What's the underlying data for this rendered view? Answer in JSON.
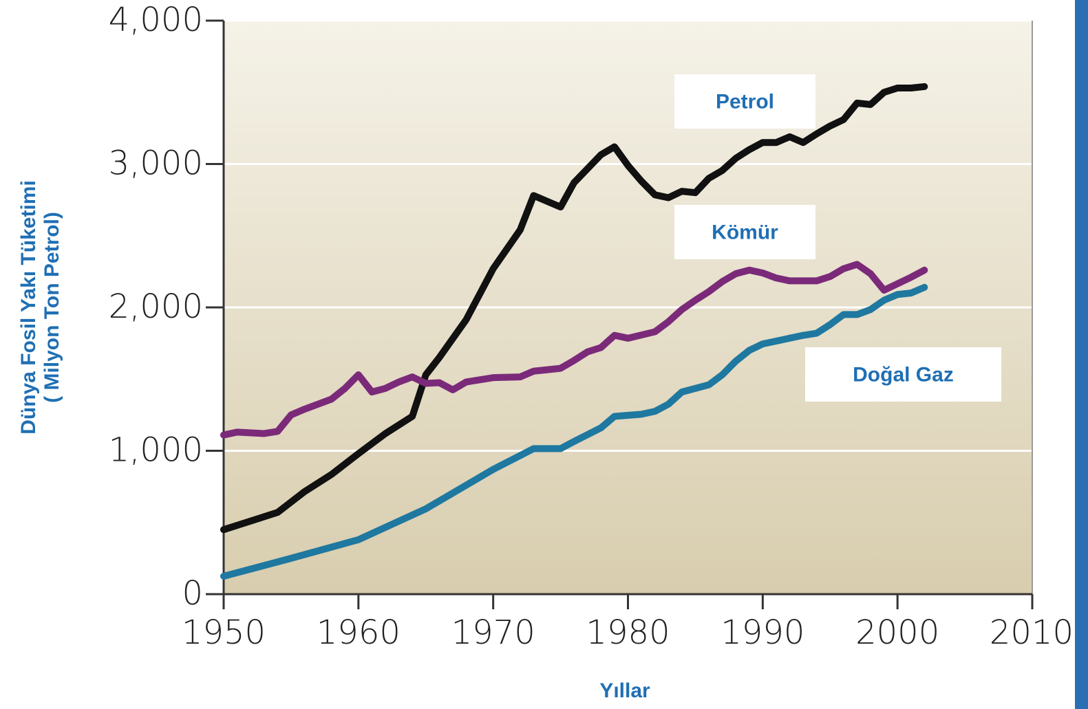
{
  "chart_data": {
    "type": "line",
    "y_label": [
      "Dünya Fosil Yakı Tüketimi",
      "( Milyon Ton Petrol)"
    ],
    "x_label": "Yıllar",
    "xlim": [
      1950,
      2010
    ],
    "xticks": [
      1950,
      1960,
      1970,
      1980,
      1990,
      2000,
      2010
    ],
    "ylim": [
      0,
      4000
    ],
    "yticks": [
      0,
      {
        "value": 1000,
        "label": "1,000"
      },
      {
        "value": 2000,
        "label": "2,000"
      },
      {
        "value": 3000,
        "label": "3,000"
      },
      {
        "value": 4000,
        "label": "4,000"
      }
    ],
    "grid": true,
    "series": [
      {
        "name": "Petrol",
        "color": "#111111",
        "x": [
          1950,
          1954,
          1956,
          1958,
          1960,
          1962,
          1964,
          1965,
          1966,
          1968,
          1970,
          1972,
          1973,
          1975,
          1976,
          1978,
          1979,
          1980,
          1981,
          1982,
          1983,
          1984,
          1985,
          1986,
          1987,
          1988,
          1989,
          1990,
          1991,
          1992,
          1993,
          1994,
          1995,
          1996,
          1997,
          1998,
          1999,
          2000,
          2001,
          2002
        ],
        "values": [
          450,
          570,
          715,
          835,
          980,
          1120,
          1240,
          1530,
          1650,
          1915,
          2270,
          2540,
          2780,
          2700,
          2870,
          3065,
          3120,
          2990,
          2880,
          2785,
          2765,
          2810,
          2800,
          2900,
          2955,
          3040,
          3100,
          3150,
          3150,
          3190,
          3150,
          3210,
          3265,
          3310,
          3425,
          3415,
          3500,
          3530,
          3530,
          3540
        ]
      },
      {
        "name": "Kömür",
        "color": "#7b2a7a",
        "x": [
          1950,
          1951,
          1953,
          1954,
          1955,
          1956,
          1958,
          1959,
          1960,
          1961,
          1962,
          1963,
          1964,
          1965,
          1966,
          1967,
          1968,
          1970,
          1972,
          1973,
          1975,
          1976,
          1977,
          1978,
          1979,
          1980,
          1982,
          1983,
          1984,
          1985,
          1986,
          1987,
          1988,
          1989,
          1990,
          1991,
          1992,
          1994,
          1995,
          1996,
          1997,
          1998,
          1999,
          2000,
          2001,
          2002
        ],
        "values": [
          1110,
          1130,
          1120,
          1135,
          1250,
          1290,
          1360,
          1435,
          1530,
          1410,
          1435,
          1480,
          1515,
          1470,
          1475,
          1425,
          1480,
          1510,
          1515,
          1555,
          1575,
          1630,
          1690,
          1720,
          1805,
          1785,
          1830,
          1900,
          1985,
          2050,
          2110,
          2180,
          2235,
          2260,
          2240,
          2205,
          2185,
          2185,
          2215,
          2270,
          2300,
          2235,
          2120,
          2165,
          2210,
          2260
        ]
      },
      {
        "name": "Doğal Gaz",
        "color": "#1f78a0",
        "x": [
          1950,
          1955,
          1960,
          1965,
          1970,
          1973,
          1975,
          1976,
          1978,
          1979,
          1981,
          1982,
          1983,
          1984,
          1986,
          1987,
          1988,
          1989,
          1990,
          1991,
          1993,
          1994,
          1995,
          1996,
          1997,
          1998,
          1999,
          2000,
          2001,
          2002
        ],
        "values": [
          125,
          250,
          380,
          595,
          870,
          1015,
          1015,
          1065,
          1160,
          1240,
          1255,
          1275,
          1325,
          1410,
          1460,
          1530,
          1625,
          1700,
          1745,
          1765,
          1805,
          1820,
          1880,
          1950,
          1950,
          1985,
          2050,
          2090,
          2100,
          2140
        ]
      }
    ]
  }
}
